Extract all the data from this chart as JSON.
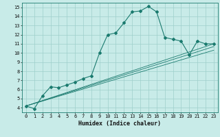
{
  "title": "",
  "xlabel": "Humidex (Indice chaleur)",
  "ylabel": "",
  "bg_color": "#c8ebe8",
  "grid_color": "#9ecfcb",
  "line_color": "#1a7a6e",
  "xlim": [
    -0.5,
    23.5
  ],
  "ylim": [
    3.5,
    15.5
  ],
  "xticks": [
    0,
    1,
    2,
    3,
    4,
    5,
    6,
    7,
    8,
    9,
    10,
    11,
    12,
    13,
    14,
    15,
    16,
    17,
    18,
    19,
    20,
    21,
    22,
    23
  ],
  "yticks": [
    4,
    5,
    6,
    7,
    8,
    9,
    10,
    11,
    12,
    13,
    14,
    15
  ],
  "main_line": [
    [
      0,
      4.2
    ],
    [
      1,
      3.9
    ],
    [
      2,
      5.3
    ],
    [
      3,
      6.3
    ],
    [
      4,
      6.2
    ],
    [
      5,
      6.5
    ],
    [
      6,
      6.8
    ],
    [
      7,
      7.2
    ],
    [
      8,
      7.5
    ],
    [
      9,
      10.0
    ],
    [
      10,
      12.0
    ],
    [
      11,
      12.2
    ],
    [
      12,
      13.3
    ],
    [
      13,
      14.5
    ],
    [
      14,
      14.6
    ],
    [
      15,
      15.1
    ],
    [
      16,
      14.5
    ],
    [
      17,
      11.7
    ],
    [
      18,
      11.5
    ],
    [
      19,
      11.3
    ],
    [
      20,
      9.8
    ],
    [
      21,
      11.3
    ],
    [
      22,
      11.0
    ],
    [
      23,
      11.0
    ]
  ],
  "trend_lines": [
    [
      [
        0,
        23
      ],
      [
        4.2,
        10.3
      ]
    ],
    [
      [
        0,
        23
      ],
      [
        4.2,
        10.7
      ]
    ],
    [
      [
        0,
        23
      ],
      [
        4.2,
        11.0
      ]
    ]
  ]
}
